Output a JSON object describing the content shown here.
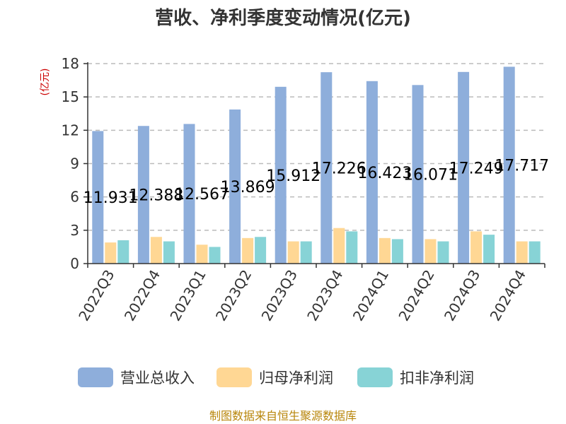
{
  "chart_data": {
    "type": "bar",
    "title": "营收、净利季度变动情况(亿元)",
    "unit_label": "(亿元)",
    "categories": [
      "2022Q3",
      "2022Q4",
      "2023Q1",
      "2023Q2",
      "2023Q3",
      "2023Q4",
      "2024Q1",
      "2024Q2",
      "2024Q3",
      "2024Q4"
    ],
    "series": [
      {
        "name": "营业总收入",
        "color": "#8eaedb",
        "values": [
          11.931,
          12.388,
          12.567,
          13.869,
          15.912,
          17.226,
          16.423,
          16.071,
          17.249,
          17.717
        ]
      },
      {
        "name": "归母净利润",
        "color": "#ffd794",
        "values": [
          1.9,
          2.4,
          1.7,
          2.3,
          2.0,
          3.2,
          2.3,
          2.2,
          2.9,
          2.0
        ]
      },
      {
        "name": "扣非净利润",
        "color": "#87d3d6",
        "values": [
          2.1,
          2.0,
          1.5,
          2.4,
          2.0,
          2.9,
          2.2,
          2.0,
          2.6,
          2.0
        ]
      }
    ],
    "data_labels": [
      "11.931",
      "12.388",
      "12.567",
      "13.869",
      "15.912",
      "17.226",
      "16.423",
      "16.071",
      "17.249",
      "17.717"
    ],
    "ylim": [
      0,
      18
    ],
    "yticks": [
      0,
      3,
      6,
      9,
      12,
      15,
      18
    ],
    "grid": true,
    "legend_position": "bottom",
    "source": "制图数据来自恒生聚源数据库"
  }
}
